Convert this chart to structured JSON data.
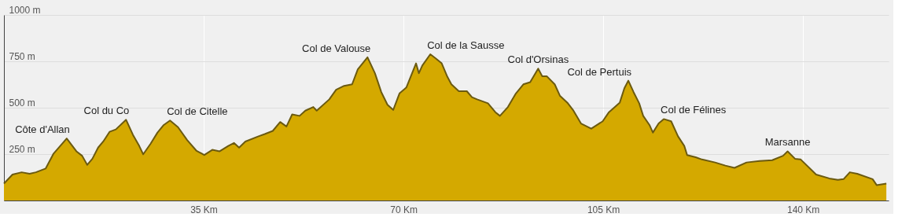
{
  "chart_data": {
    "type": "area",
    "x": [
      0,
      1.5,
      3.1,
      4.5,
      5.6,
      7.3,
      8.7,
      11.0,
      12.7,
      13.7,
      14.6,
      15.5,
      16.5,
      17.4,
      18.5,
      19.6,
      21.4,
      22.6,
      23.7,
      24.4,
      25.7,
      26.9,
      28.0,
      29.1,
      30.5,
      32.1,
      33.7,
      35.1,
      36.5,
      37.8,
      39.3,
      40.3,
      41.2,
      42.3,
      44.6,
      45.7,
      47.1,
      48.4,
      49.5,
      50.5,
      51.8,
      52.8,
      54.2,
      54.8,
      57.0,
      58.2,
      59.6,
      61.0,
      62.0,
      63.7,
      65.0,
      66.1,
      67.2,
      68.2,
      69.3,
      70.5,
      72.2,
      72.7,
      73.3,
      74.7,
      75.6,
      76.7,
      77.7,
      78.4,
      79.7,
      81.1,
      82.0,
      82.9,
      84.8,
      86.1,
      86.9,
      88.3,
      89.7,
      91.0,
      92.2,
      93.6,
      94.3,
      95.1,
      96.5,
      97.4,
      98.8,
      99.7,
      101.1,
      102.9,
      104.9,
      106.0,
      107.9,
      108.7,
      109.4,
      110.3,
      111.3,
      112.0,
      113.1,
      113.7,
      114.7,
      115.6,
      116.9,
      118.1,
      119.2,
      119.7,
      121.2,
      122.3,
      124.6,
      126.4,
      128.0,
      130.1,
      132.4,
      134.6,
      136.5,
      137.3,
      138.6,
      139.6,
      142.3,
      144.6,
      146.1,
      147.1,
      148.2,
      149.5,
      152.2,
      152.9,
      154.6
    ],
    "series": [
      {
        "color": "#d4a900",
        "values": [
          91,
          140,
          152,
          144,
          152,
          172,
          253,
          334,
          265,
          241,
          192,
          225,
          285,
          318,
          370,
          383,
          435,
          354,
          294,
          249,
          306,
          366,
          407,
          431,
          395,
          326,
          269,
          245,
          273,
          265,
          294,
          310,
          285,
          318,
          346,
          358,
          375,
          423,
          399,
          464,
          456,
          484,
          504,
          484,
          545,
          597,
          618,
          626,
          707,
          772,
          686,
          585,
          516,
          488,
          577,
          609,
          739,
          686,
          727,
          788,
          767,
          739,
          666,
          626,
          589,
          589,
          557,
          545,
          524,
          476,
          456,
          504,
          577,
          626,
          638,
          711,
          670,
          670,
          626,
          565,
          524,
          488,
          415,
          387,
          427,
          476,
          528,
          605,
          646,
          585,
          524,
          456,
          407,
          366,
          415,
          439,
          427,
          346,
          294,
          245,
          233,
          221,
          205,
          188,
          176,
          205,
          213,
          217,
          241,
          265,
          225,
          221,
          140,
          119,
          111,
          115,
          152,
          144,
          115,
          83,
          91
        ]
      }
    ],
    "xlim": [
      0,
      155
    ],
    "ylim": [
      0,
      1000
    ],
    "xticks": [
      {
        "value": 35,
        "label": "35 Km"
      },
      {
        "value": 70,
        "label": "70 Km"
      },
      {
        "value": 105,
        "label": "105 Km"
      },
      {
        "value": 140,
        "label": "140 Km"
      }
    ],
    "yticks": [
      {
        "value": 250,
        "label": "250 m"
      },
      {
        "value": 500,
        "label": "500 m"
      },
      {
        "value": 750,
        "label": "750 m"
      },
      {
        "value": 1000,
        "label": "1000 m"
      }
    ],
    "grid": true,
    "annotations": [
      {
        "text": "Côte d'Allan",
        "x": 11.0,
        "y": 334
      },
      {
        "text": "Col du Co",
        "x": 21.4,
        "y": 435
      },
      {
        "text": "Col de Citelle",
        "x": 29.1,
        "y": 431
      },
      {
        "text": "Col de Valouse",
        "x": 63.7,
        "y": 772
      },
      {
        "text": "Col de la Sausse",
        "x": 74.7,
        "y": 788
      },
      {
        "text": "Col d'Orsinas",
        "x": 93.6,
        "y": 711
      },
      {
        "text": "Col de Pertuis",
        "x": 109.4,
        "y": 646
      },
      {
        "text": "Col de Félines",
        "x": 115.6,
        "y": 439
      },
      {
        "text": "Marsanne",
        "x": 137.3,
        "y": 265
      }
    ]
  }
}
